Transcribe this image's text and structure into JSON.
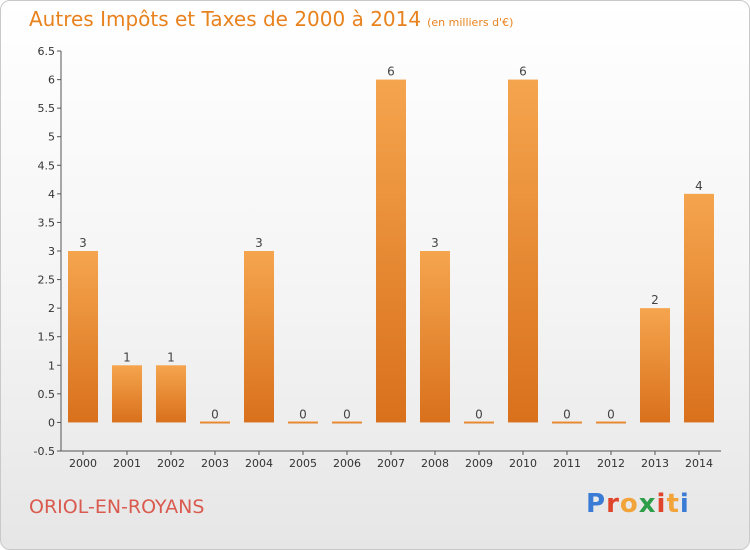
{
  "header": {
    "title": "Autres Impôts et Taxes de 2000 à 2014",
    "subtitle": "(en milliers d'€)"
  },
  "footer": {
    "city": "ORIOL-EN-ROYANS",
    "logo": [
      "P",
      "r",
      "o",
      "x",
      "i",
      "t",
      "i"
    ]
  },
  "colors": {
    "bar_light": "#f5a54e",
    "bar_dark": "#d9701c",
    "title": "#e8821e",
    "city": "#d95a4e",
    "logo": [
      "#3a7bd5",
      "#e0452b",
      "#f2a43a",
      "#2e9e49",
      "#e0452b",
      "#f2a43a",
      "#3a7bd5"
    ]
  },
  "chart_data": {
    "type": "bar",
    "title": "Autres Impôts et Taxes de 2000 à 2014",
    "subtitle": "(en milliers d'€)",
    "categories": [
      "2000",
      "2001",
      "2002",
      "2003",
      "2004",
      "2005",
      "2006",
      "2007",
      "2008",
      "2009",
      "2010",
      "2011",
      "2012",
      "2013",
      "2014"
    ],
    "values": [
      3,
      1,
      1,
      0,
      3,
      0,
      0,
      6,
      3,
      0,
      6,
      0,
      0,
      2,
      4
    ],
    "labels": [
      "3",
      "1",
      "1",
      "0",
      "3",
      "0",
      "0",
      "6",
      "3",
      "0",
      "6",
      "0",
      "0",
      "2",
      "4"
    ],
    "ylim": [
      -0.5,
      6.5
    ],
    "yticks": [
      "-0.5",
      "0",
      "0.5",
      "1",
      "1.5",
      "2",
      "2.5",
      "3",
      "3.5",
      "4",
      "4.5",
      "5",
      "5.5",
      "6",
      "6.5"
    ],
    "grid": false,
    "legend": "none"
  }
}
